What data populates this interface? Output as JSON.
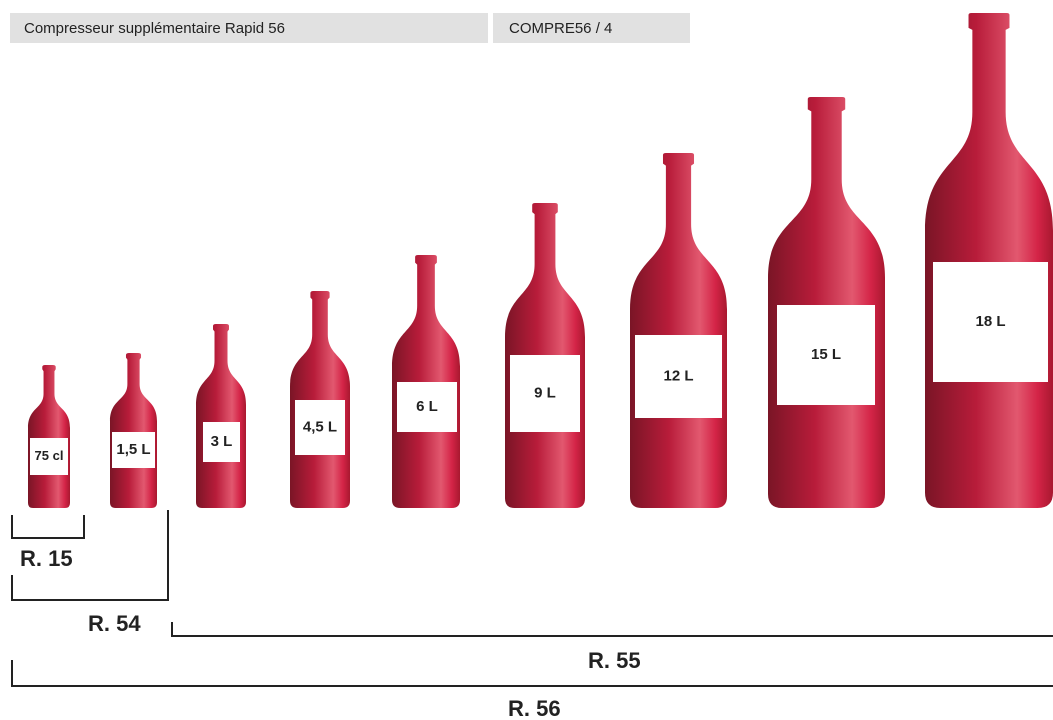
{
  "header": {
    "title": "Compresseur supplémentaire Rapid 56",
    "code": "COMPRE56 / 4"
  },
  "bottles": [
    {
      "label": "75 cl"
    },
    {
      "label": "1,5 L"
    },
    {
      "label": "3 L"
    },
    {
      "label": "4,5 L"
    },
    {
      "label": "6 L"
    },
    {
      "label": "9 L"
    },
    {
      "label": "12 L"
    },
    {
      "label": "15 L"
    },
    {
      "label": "18 L"
    }
  ],
  "ranges": [
    {
      "label": "R. 15"
    },
    {
      "label": "R. 54"
    },
    {
      "label": "R. 55"
    },
    {
      "label": "R. 56"
    }
  ]
}
